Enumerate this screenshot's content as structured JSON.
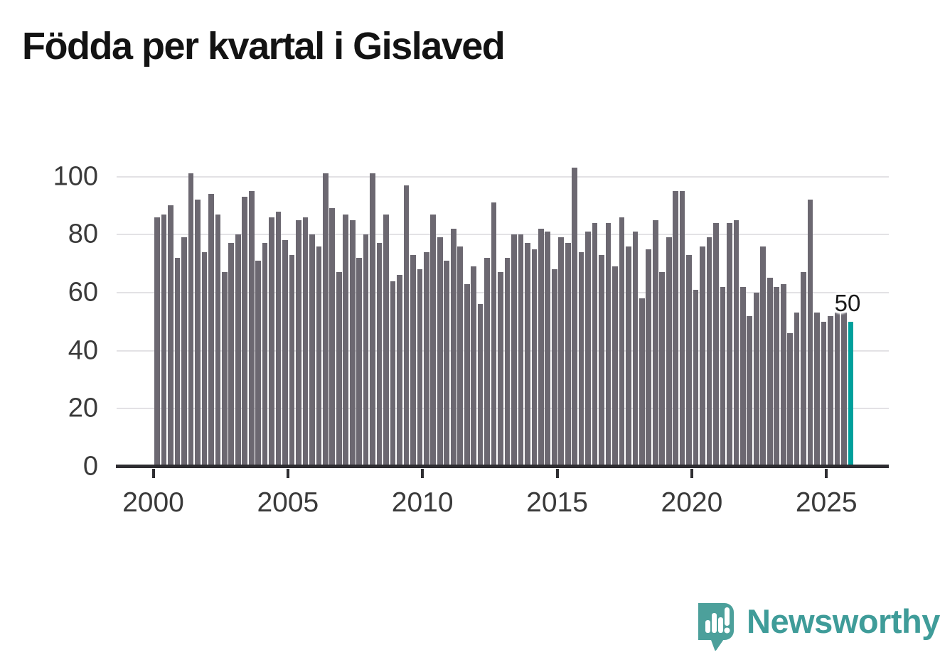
{
  "title": "Födda per kvartal i Gislaved",
  "annotation": {
    "last_value_label": "50"
  },
  "logo": {
    "brand_name": "Newsworthy",
    "icon": "newsworthy-speech-bubble-bar-chart-icon"
  },
  "colors": {
    "bar": "#6c6871",
    "highlight": "#00a09c",
    "grid": "#e3e2e5",
    "axis": "#2e2d31",
    "axis_text": "#3a3a3a",
    "title_text": "#131313",
    "logo_teal": "#4ca09b",
    "logo_text_teal": "#3f9c99"
  },
  "chart_data": {
    "type": "bar",
    "title": "Födda per kvartal i Gislaved",
    "description": "Births per quarter in Gislaved, one bar per quarter",
    "period": "quarterly",
    "start_period": "2000 Q1",
    "end_period": "2025 Q4",
    "x_tick_labels": [
      "2000",
      "2005",
      "2010",
      "2015",
      "2020",
      "2025"
    ],
    "y_tick_labels": [
      0,
      20,
      40,
      60,
      80,
      100
    ],
    "ylim": [
      0,
      107
    ],
    "grid": true,
    "legend_position": "none",
    "xlabel": "",
    "ylabel": "",
    "values": [
      86,
      87,
      90,
      72,
      79,
      101,
      92,
      74,
      94,
      87,
      67,
      77,
      80,
      93,
      95,
      71,
      77,
      86,
      88,
      78,
      73,
      85,
      86,
      80,
      76,
      101,
      89,
      67,
      87,
      85,
      72,
      80,
      101,
      77,
      87,
      64,
      66,
      97,
      73,
      68,
      74,
      87,
      79,
      71,
      82,
      76,
      63,
      69,
      56,
      72,
      91,
      67,
      72,
      80,
      80,
      77,
      75,
      82,
      81,
      68,
      79,
      77,
      103,
      74,
      81,
      84,
      73,
      84,
      69,
      86,
      76,
      81,
      58,
      75,
      85,
      67,
      79,
      95,
      95,
      73,
      61,
      76,
      79,
      84,
      62,
      84,
      85,
      62,
      52,
      60,
      76,
      65,
      62,
      63,
      46,
      53,
      67,
      92,
      53,
      50,
      52,
      53,
      53,
      50
    ],
    "highlight": {
      "index": 103,
      "value": 50,
      "label": "50"
    }
  }
}
